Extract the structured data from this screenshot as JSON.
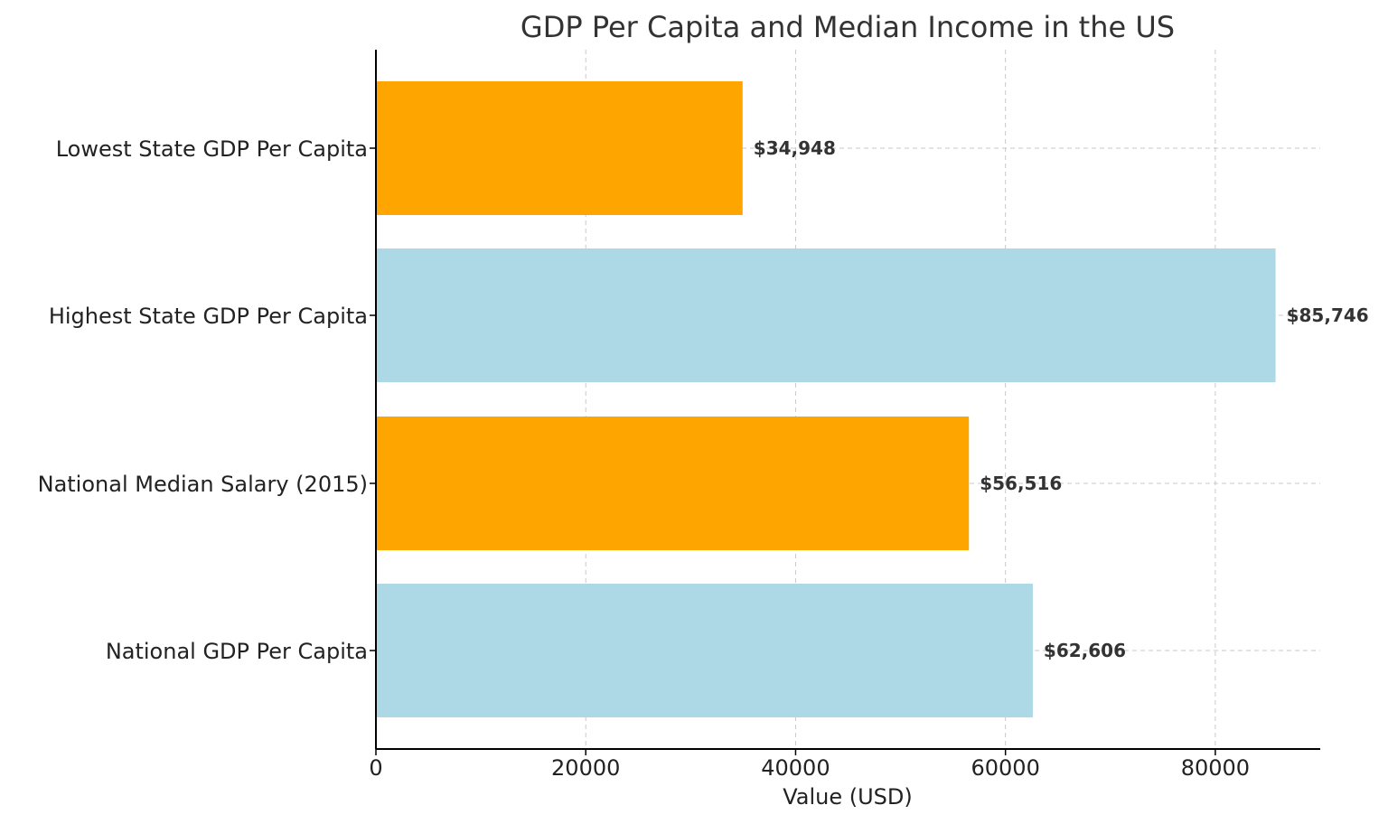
{
  "chart_data": {
    "type": "bar",
    "orientation": "horizontal",
    "title": "GDP Per Capita and Median Income in the US",
    "xlabel": "Value (USD)",
    "ylabel": "",
    "categories": [
      "National GDP Per Capita",
      "National Median Salary (2015)",
      "Highest State GDP Per Capita",
      "Lowest State GDP Per Capita"
    ],
    "values": [
      62606,
      56516,
      85746,
      34948
    ],
    "value_labels": [
      "$62,606",
      "$56,516",
      "$85,746",
      "$34,948"
    ],
    "bar_colors": [
      "#add8e6",
      "#ffa500",
      "#add8e6",
      "#ffa500"
    ],
    "xlim": [
      0,
      90000
    ],
    "xticks": [
      0,
      20000,
      40000,
      60000,
      80000
    ],
    "xtick_labels": [
      "0",
      "20000",
      "40000",
      "60000",
      "80000"
    ],
    "grid": true,
    "grid_style": "dashed",
    "colors": {
      "grid": "#c8c8c8",
      "axis": "#000000",
      "text": "#222222"
    }
  }
}
